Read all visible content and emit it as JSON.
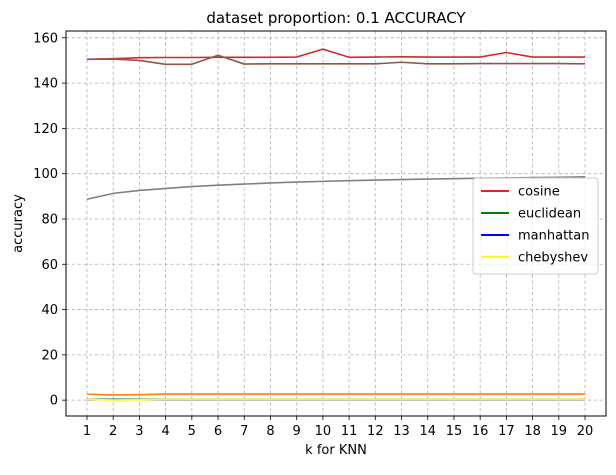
{
  "chart_data": {
    "type": "line",
    "title": "dataset proportion: 0.1 ACCURACY",
    "xlabel": "k for KNN",
    "ylabel": "accuracy",
    "x": [
      1,
      2,
      3,
      4,
      5,
      6,
      7,
      8,
      9,
      10,
      11,
      12,
      13,
      14,
      15,
      16,
      17,
      18,
      19,
      20
    ],
    "xlim": [
      0.2,
      20.8
    ],
    "ylim": [
      -7,
      163
    ],
    "yticks": [
      0,
      20,
      40,
      60,
      80,
      100,
      120,
      140,
      160
    ],
    "grid": true,
    "legend_position": "right",
    "series": [
      {
        "name": "cosine",
        "color": "#d62728",
        "in_legend": true,
        "values": [
          150.5,
          150.8,
          151.2,
          151.3,
          151.3,
          151.4,
          151.4,
          151.4,
          151.5,
          155.0,
          151.4,
          151.5,
          151.6,
          151.5,
          151.5,
          151.5,
          153.5,
          151.5,
          151.5,
          151.5
        ]
      },
      {
        "name": "euclidean",
        "color": "#008000",
        "in_legend": true,
        "values": [
          0.4,
          0.4,
          0.4,
          0.4,
          0.4,
          0.4,
          0.4,
          0.4,
          0.4,
          0.4,
          0.4,
          0.4,
          0.4,
          0.4,
          0.4,
          0.4,
          0.4,
          0.4,
          0.4,
          0.4
        ]
      },
      {
        "name": "manhattan",
        "color": "#0000ff",
        "in_legend": true,
        "values": [
          0.2,
          0.2,
          0.2,
          0.2,
          0.2,
          0.2,
          0.2,
          0.2,
          0.2,
          0.2,
          0.2,
          0.2,
          0.2,
          0.2,
          0.2,
          0.2,
          0.2,
          0.2,
          0.2,
          0.2
        ]
      },
      {
        "name": "chebyshev",
        "color": "#ffff00",
        "in_legend": true,
        "values": [
          0.3,
          0.1,
          0.2,
          0.3,
          0.3,
          0.3,
          0.3,
          0.3,
          0.3,
          0.3,
          0.3,
          0.3,
          0.3,
          0.3,
          0.3,
          0.3,
          0.3,
          0.3,
          0.3,
          0.3
        ]
      },
      {
        "name": "",
        "color": "#ff7f0e",
        "in_legend": false,
        "values": [
          2.6,
          2.3,
          2.4,
          2.7,
          2.7,
          2.7,
          2.7,
          2.7,
          2.7,
          2.7,
          2.7,
          2.7,
          2.7,
          2.7,
          2.7,
          2.7,
          2.7,
          2.7,
          2.7,
          2.7
        ]
      },
      {
        "name": "",
        "color": "#8c564b",
        "in_legend": false,
        "values": [
          150.5,
          150.6,
          150.0,
          148.3,
          148.3,
          152.3,
          148.4,
          148.5,
          148.5,
          148.5,
          148.5,
          148.5,
          149.2,
          148.5,
          148.5,
          148.6,
          148.6,
          148.6,
          148.6,
          148.5
        ]
      },
      {
        "name": "",
        "color": "#808080",
        "in_legend": false,
        "values": [
          88.7,
          91.3,
          92.6,
          93.5,
          94.3,
          94.9,
          95.4,
          95.9,
          96.3,
          96.6,
          96.9,
          97.2,
          97.4,
          97.6,
          97.8,
          98.0,
          98.1,
          98.3,
          98.4,
          98.6
        ]
      }
    ]
  }
}
